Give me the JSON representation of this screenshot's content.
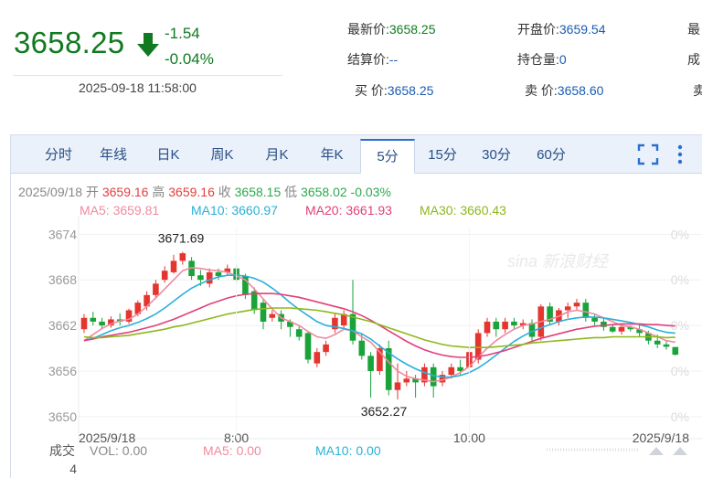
{
  "quote": {
    "price": "3658.25",
    "change": "-1.54",
    "change_pct": "-0.04%",
    "datetime": "2025-09-18 11:58:00",
    "fields": [
      {
        "label": "最新价:",
        "value": "3658.25",
        "tone": "up"
      },
      {
        "label": "开盘价:",
        "value": "3659.54",
        "tone": "blue"
      },
      {
        "label": "最",
        "value": "",
        "tone": "blue"
      },
      {
        "label": "结算价:",
        "value": "--",
        "tone": "blue"
      },
      {
        "label": "持仓量:",
        "value": "0",
        "tone": "blue"
      },
      {
        "label": "成",
        "value": "",
        "tone": "blue"
      },
      {
        "label": "买  价:",
        "value": "3658.25",
        "tone": "blue"
      },
      {
        "label": "卖  价:",
        "value": "3658.60",
        "tone": "blue"
      },
      {
        "label": "卖",
        "value": "",
        "tone": "blue"
      }
    ]
  },
  "tabs": [
    "分时",
    "年线",
    "日K",
    "周K",
    "月K",
    "年K",
    "5分",
    "15分",
    "30分",
    "60分"
  ],
  "active_tab": "5分",
  "ohlc_info": {
    "date": "2025/09/18",
    "open_label": "开",
    "open": "3659.16",
    "high_label": "高",
    "high": "3659.16",
    "close_label": "收",
    "close": "3658.15",
    "low_label": "低",
    "low": "3658.02",
    "pct": "-0.03%"
  },
  "ma_info": [
    {
      "label": "MA5:",
      "value": "3659.81",
      "color": "#f08aa0"
    },
    {
      "label": "MA10:",
      "value": "3660.97",
      "color": "#2ab0d8"
    },
    {
      "label": "MA20:",
      "value": "3661.93",
      "color": "#e0407a"
    },
    {
      "label": "MA30:",
      "value": "3660.43",
      "color": "#8db81c"
    }
  ],
  "watermark": "sina 新浪财经",
  "volume_info": {
    "title": "成交",
    "vol_label": "VOL:",
    "vol": "0.00",
    "ma5_label": "MA5:",
    "ma5": "0.00",
    "ma10_label": "MA10:",
    "ma10": "0.00",
    "y_tick": "4"
  },
  "chart_data": {
    "type": "candlestick",
    "y_ticks": [
      "3674",
      "3668",
      "3662",
      "3656",
      "3650"
    ],
    "y_tick_values": [
      3674,
      3668,
      3662,
      3656,
      3650
    ],
    "ylim": [
      3649.5,
      3675
    ],
    "right_ticks": [
      "0%",
      "0%",
      "0%",
      "0%",
      "0%"
    ],
    "x_labels": [
      {
        "label": "2025/9/18",
        "index": 0
      },
      {
        "label": "8:00",
        "index": 17
      },
      {
        "label": "10:00",
        "index": 43
      },
      {
        "label": "2025/9/18",
        "index": 64
      }
    ],
    "annotations": [
      {
        "text": "3671.69",
        "index": 10,
        "value": 3671.69,
        "anchor": "high"
      },
      {
        "text": "3652.27",
        "index": 35,
        "value": 3652.27,
        "anchor": "low"
      }
    ],
    "candles": [
      [
        3661.5,
        3663.0,
        3663.5,
        3661.0
      ],
      [
        3663.0,
        3662.5,
        3663.8,
        3662.0
      ],
      [
        3662.5,
        3662.0,
        3663.0,
        3661.5
      ],
      [
        3662.0,
        3662.8,
        3663.2,
        3661.7
      ],
      [
        3662.8,
        3662.5,
        3663.6,
        3662.0
      ],
      [
        3662.5,
        3664.0,
        3664.2,
        3662.2
      ],
      [
        3663.5,
        3665.0,
        3665.3,
        3663.2
      ],
      [
        3664.5,
        3666.0,
        3666.5,
        3664.0
      ],
      [
        3666.0,
        3667.5,
        3668.0,
        3665.5
      ],
      [
        3668.0,
        3669.2,
        3669.8,
        3667.6
      ],
      [
        3669.0,
        3670.5,
        3671.3,
        3668.8
      ],
      [
        3670.5,
        3671.5,
        3671.69,
        3670.0
      ],
      [
        3670.5,
        3668.5,
        3671.0,
        3668.0
      ],
      [
        3668.6,
        3668.0,
        3669.3,
        3667.2
      ],
      [
        3667.5,
        3669.0,
        3669.5,
        3667.0
      ],
      [
        3669.0,
        3668.5,
        3669.5,
        3668.0
      ],
      [
        3669.0,
        3669.5,
        3670.0,
        3668.5
      ],
      [
        3669.5,
        3668.0,
        3670.0,
        3667.5
      ],
      [
        3668.5,
        3666.0,
        3668.8,
        3665.5
      ],
      [
        3666.5,
        3664.0,
        3667.0,
        3663.5
      ],
      [
        3665.0,
        3662.5,
        3665.5,
        3661.5
      ],
      [
        3663.0,
        3663.5,
        3664.0,
        3662.5
      ],
      [
        3663.5,
        3662.5,
        3664.0,
        3661.5
      ],
      [
        3662.5,
        3661.8,
        3662.8,
        3660.5
      ],
      [
        3661.5,
        3660.5,
        3662.0,
        3660.0
      ],
      [
        3661.0,
        3657.5,
        3661.2,
        3657.0
      ],
      [
        3657.0,
        3658.5,
        3659.0,
        3656.5
      ],
      [
        3658.5,
        3659.5,
        3660.0,
        3658.0
      ],
      [
        3661.5,
        3663.0,
        3663.5,
        3661.0
      ],
      [
        3662.0,
        3663.5,
        3664.0,
        3661.5
      ],
      [
        3663.5,
        3660.0,
        3668.0,
        3659.5
      ],
      [
        3660.0,
        3658.0,
        3661.0,
        3657.5
      ],
      [
        3658.0,
        3656.0,
        3658.5,
        3652.5
      ],
      [
        3656.0,
        3659.0,
        3659.5,
        3655.5
      ],
      [
        3659.0,
        3653.5,
        3660.0,
        3652.8
      ],
      [
        3653.5,
        3654.5,
        3657.0,
        3652.27
      ],
      [
        3654.5,
        3655.0,
        3656.0,
        3654.0
      ],
      [
        3655.0,
        3654.5,
        3655.5,
        3652.5
      ],
      [
        3654.5,
        3656.5,
        3657.0,
        3654.0
      ],
      [
        3656.5,
        3654.0,
        3657.0,
        3652.5
      ],
      [
        3654.5,
        3655.5,
        3656.0,
        3654.0
      ],
      [
        3655.5,
        3656.5,
        3657.0,
        3655.0
      ],
      [
        3656.5,
        3656.0,
        3657.5,
        3655.5
      ],
      [
        3656.5,
        3658.5,
        3659.0,
        3656.0
      ],
      [
        3657.5,
        3661.0,
        3661.5,
        3657.0
      ],
      [
        3661.0,
        3662.5,
        3663.0,
        3660.5
      ],
      [
        3662.5,
        3661.5,
        3663.0,
        3660.5
      ],
      [
        3661.5,
        3662.5,
        3663.0,
        3661.0
      ],
      [
        3662.5,
        3662.0,
        3663.0,
        3661.5
      ],
      [
        3662.0,
        3662.3,
        3662.8,
        3661.5
      ],
      [
        3662.3,
        3660.5,
        3662.8,
        3660.0
      ],
      [
        3660.5,
        3664.5,
        3664.8,
        3660.0
      ],
      [
        3664.5,
        3662.5,
        3665.0,
        3662.0
      ],
      [
        3662.5,
        3664.0,
        3664.3,
        3662.0
      ],
      [
        3664.0,
        3664.5,
        3665.0,
        3663.0
      ],
      [
        3664.5,
        3665.0,
        3665.5,
        3664.0
      ],
      [
        3665.0,
        3663.0,
        3665.5,
        3662.5
      ],
      [
        3663.0,
        3662.5,
        3663.5,
        3662.0
      ],
      [
        3662.5,
        3661.8,
        3663.0,
        3661.3
      ],
      [
        3661.8,
        3661.2,
        3662.2,
        3661.0
      ],
      [
        3661.2,
        3661.8,
        3662.1,
        3660.8
      ],
      [
        3661.8,
        3661.5,
        3662.0,
        3661.2
      ],
      [
        3661.5,
        3661.0,
        3662.0,
        3660.5
      ],
      [
        3661.0,
        3660.0,
        3661.3,
        3659.5
      ],
      [
        3660.0,
        3659.5,
        3660.8,
        3659.0
      ],
      [
        3659.5,
        3659.2,
        3660.0,
        3658.8
      ],
      [
        3659.16,
        3658.15,
        3659.16,
        3658.02
      ]
    ],
    "series": [
      {
        "name": "MA5",
        "color": "#f08aa0",
        "values": [
          3660,
          3660.8,
          3661.6,
          3662.2,
          3662.6,
          3662.8,
          3663.5,
          3664.5,
          3665.6,
          3666.8,
          3668,
          3669.2,
          3669.6,
          3669.5,
          3669.3,
          3669.2,
          3669,
          3668.5,
          3668,
          3666.8,
          3665.5,
          3664.2,
          3663,
          3662.5,
          3662,
          3661.2,
          3660.5,
          3660.3,
          3660.8,
          3661.5,
          3661.3,
          3660.5,
          3659.8,
          3658.5,
          3657.2,
          3656,
          3655.3,
          3655,
          3654.8,
          3654.6,
          3654.8,
          3655.2,
          3655.8,
          3656.6,
          3657.8,
          3659,
          3660,
          3660.8,
          3661.5,
          3662,
          3662.2,
          3662.5,
          3662.8,
          3663.2,
          3663.8,
          3664,
          3663.8,
          3663.5,
          3663,
          3662.5,
          3662,
          3661.8,
          3661.5,
          3661,
          3660.5,
          3660,
          3659.8
        ]
      },
      {
        "name": "MA10",
        "color": "#2ab0d8",
        "values": [
          3660,
          3660.3,
          3660.8,
          3661.3,
          3661.7,
          3662,
          3662.4,
          3662.9,
          3663.5,
          3664.3,
          3665.2,
          3666.1,
          3666.9,
          3667.5,
          3668,
          3668.4,
          3668.6,
          3668.6,
          3668.5,
          3668.2,
          3667.7,
          3666.9,
          3666,
          3665,
          3664.1,
          3663.3,
          3662.5,
          3662,
          3661.8,
          3661.6,
          3661.3,
          3660.9,
          3660.2,
          3659.3,
          3658.4,
          3657.6,
          3656.9,
          3656.3,
          3655.8,
          3655.4,
          3655.2,
          3655.2,
          3655.4,
          3655.8,
          3656.4,
          3657.2,
          3658.1,
          3659,
          3659.9,
          3660.6,
          3661.2,
          3661.7,
          3662.1,
          3662.5,
          3662.8,
          3663,
          3663.1,
          3663.1,
          3663,
          3662.8,
          3662.6,
          3662.4,
          3662.1,
          3661.8,
          3661.4,
          3661.1,
          3660.97
        ]
      },
      {
        "name": "MA20",
        "color": "#e0407a",
        "values": [
          3660,
          3660.2,
          3660.5,
          3660.7,
          3660.9,
          3661.1,
          3661.4,
          3661.7,
          3662,
          3662.4,
          3662.8,
          3663.3,
          3663.8,
          3664.3,
          3664.8,
          3665.2,
          3665.6,
          3665.9,
          3666.1,
          3666.2,
          3666.2,
          3666.2,
          3666.1,
          3665.9,
          3665.7,
          3665.4,
          3665.1,
          3664.8,
          3664.5,
          3664.2,
          3663.8,
          3663.3,
          3662.7,
          3662,
          3661.3,
          3660.6,
          3659.9,
          3659.3,
          3658.8,
          3658.4,
          3658.1,
          3657.9,
          3657.8,
          3657.8,
          3657.9,
          3658.1,
          3658.4,
          3658.7,
          3659.1,
          3659.5,
          3659.9,
          3660.3,
          3660.6,
          3660.9,
          3661.2,
          3661.5,
          3661.7,
          3661.9,
          3662,
          3662.1,
          3662.2,
          3662.2,
          3662.2,
          3662.1,
          3662.1,
          3662,
          3661.93
        ]
      },
      {
        "name": "MA30",
        "color": "#8db81c",
        "values": [
          3660.5,
          3660.4,
          3660.4,
          3660.5,
          3660.6,
          3660.7,
          3660.9,
          3661.1,
          3661.3,
          3661.5,
          3661.8,
          3662,
          3662.3,
          3662.6,
          3662.9,
          3663.2,
          3663.5,
          3663.7,
          3663.9,
          3664.1,
          3664.2,
          3664.3,
          3664.3,
          3664.3,
          3664.2,
          3664.1,
          3664,
          3663.8,
          3663.6,
          3663.4,
          3663.1,
          3662.8,
          3662.5,
          3662.1,
          3661.7,
          3661.3,
          3660.9,
          3660.5,
          3660.1,
          3659.8,
          3659.5,
          3659.3,
          3659.2,
          3659.1,
          3659.1,
          3659.1,
          3659.2,
          3659.3,
          3659.4,
          3659.5,
          3659.7,
          3659.8,
          3659.9,
          3660,
          3660.1,
          3660.2,
          3660.3,
          3660.4,
          3660.4,
          3660.5,
          3660.5,
          3660.5,
          3660.5,
          3660.5,
          3660.5,
          3660.4,
          3660.43
        ]
      }
    ]
  }
}
